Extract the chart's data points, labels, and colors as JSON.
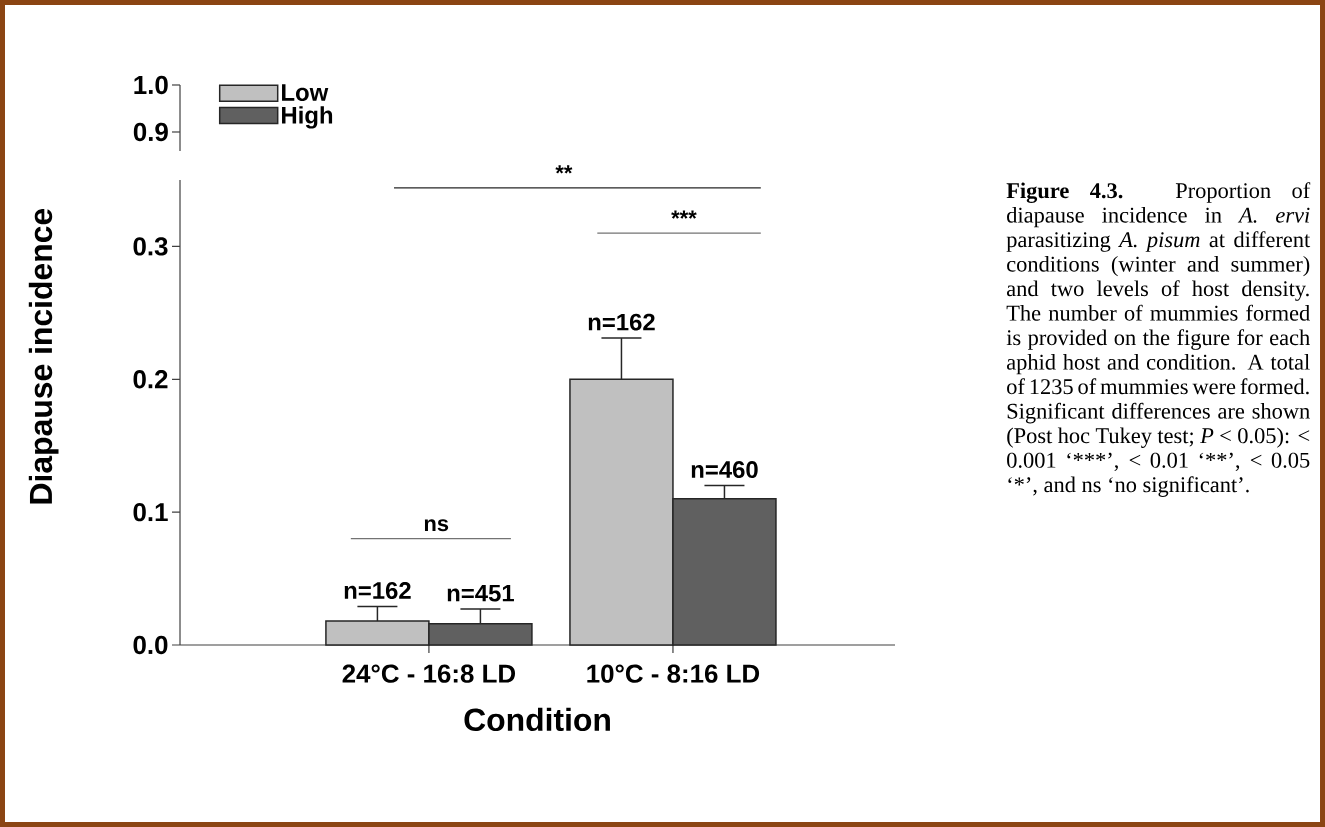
{
  "chart_data": [
    {
      "type": "other",
      "annotations": [
        "1.0",
        "0.9"
      ]
    },
    {
      "type": "bar",
      "categories": [
        "24°C - 16:8 LD",
        "10°C - 8:16 LD"
      ],
      "xlabel": "Condition",
      "ylabel": "Diapause incidence",
      "ylim": [
        0,
        0.35
      ],
      "yticks": [
        {
          "value": 0,
          "label": "0.0"
        },
        {
          "value": 0.1,
          "label": "0.1"
        },
        {
          "value": 0.2,
          "label": "0.2"
        },
        {
          "value": 0.3,
          "label": "0.3"
        }
      ],
      "legend": "top left",
      "series": [
        {
          "name": "Low",
          "color": "#c0c0c0",
          "values": [
            0.018,
            0.2
          ],
          "errors": [
            [
              0.018,
              0.029
            ],
            [
              0.2,
              0.231
            ]
          ]
        },
        {
          "name": "High",
          "color": "#606060",
          "values": [
            0.016,
            0.11
          ],
          "errors": [
            [
              0.016,
              0.027
            ],
            [
              0.11,
              0.12
            ]
          ]
        }
      ],
      "annotations": [
        "ns",
        "**",
        "***",
        "n=162",
        "n=451",
        "n=162",
        "n=460",
        "**Figure 4.3.** Proportion of diapause incidence in *A. ervi* parasitizing *A. pisum* at different conditions (winter and summer) and two levels of host density. The number of mummies formed is provided on the figure for each aphid host and condition. A total of 1235 of mummies were formed. Significant differences are shown (Post hoc Tukey test; *P* < 0.05):  < 0.001",
        "‘***’, < 0.01",
        "‘**’, < 0.05",
        "‘*’, and ns ‘no significant’."
      ]
    }
  ]
}
